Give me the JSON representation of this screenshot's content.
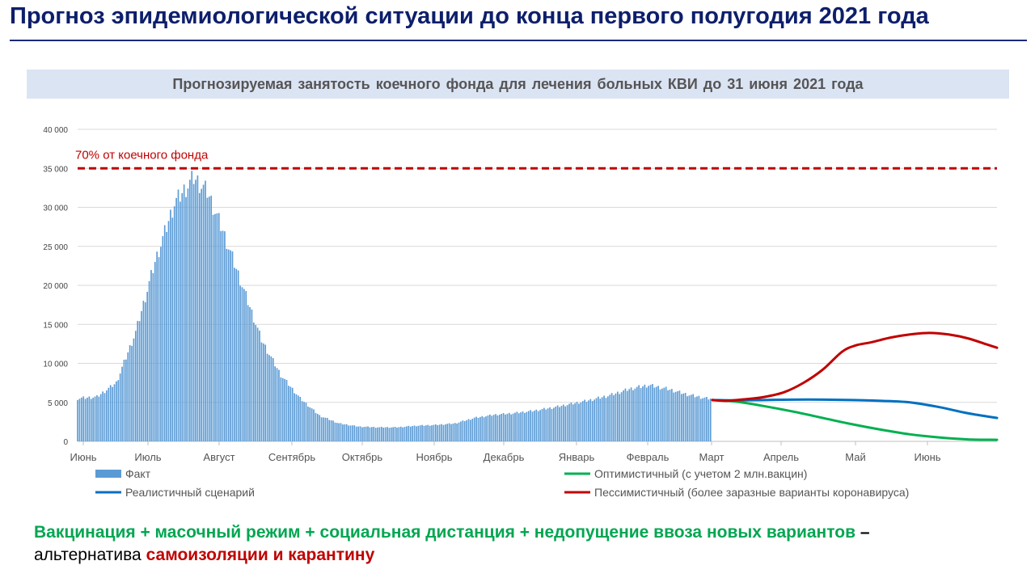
{
  "slide": {
    "title": "Прогноз эпидемиологической ситуации до конца первого полугодия 2021 года"
  },
  "chart_data": {
    "type": "bar",
    "title": "Прогнозируемая занятость коечного фонда для лечения больных КВИ до 31 июня 2021 года",
    "xlabel": "",
    "ylabel": "",
    "ylim": [
      0,
      40000
    ],
    "yticks": [
      0,
      5000,
      10000,
      15000,
      20000,
      25000,
      30000,
      35000,
      40000
    ],
    "ytick_labels": [
      "0",
      "5 000",
      "10 000",
      "15 000",
      "20 000",
      "25 000",
      "30 000",
      "35 000",
      "40 000"
    ],
    "grid": true,
    "legend_position": "bottom",
    "month_labels": [
      "Июнь",
      "Июль",
      "Август",
      "Сентябрь",
      "Октябрь",
      "Ноябрь",
      "Декабрь",
      "Январь",
      "Февраль",
      "Март",
      "Апрель",
      "Май",
      "Июнь"
    ],
    "reference_line": {
      "value": 35000,
      "label": "70% от коечного фонда",
      "color": "#c00000",
      "style": "dashed"
    },
    "fact": {
      "name": "Факт",
      "color": "#5b9bd5",
      "knots": [
        [
          0,
          5500
        ],
        [
          10,
          5700
        ],
        [
          20,
          7500
        ],
        [
          30,
          14000
        ],
        [
          40,
          23000
        ],
        [
          50,
          30500
        ],
        [
          60,
          33800
        ],
        [
          67,
          32000
        ],
        [
          75,
          27000
        ],
        [
          85,
          20000
        ],
        [
          95,
          13000
        ],
        [
          105,
          8500
        ],
        [
          115,
          5500
        ],
        [
          125,
          3300
        ],
        [
          135,
          2300
        ],
        [
          145,
          1900
        ],
        [
          155,
          1800
        ],
        [
          165,
          1800
        ],
        [
          175,
          2000
        ],
        [
          185,
          2100
        ],
        [
          195,
          2300
        ],
        [
          205,
          3000
        ],
        [
          215,
          3400
        ],
        [
          225,
          3600
        ],
        [
          235,
          3900
        ],
        [
          245,
          4300
        ],
        [
          255,
          4800
        ],
        [
          265,
          5300
        ],
        [
          275,
          5900
        ],
        [
          285,
          6700
        ],
        [
          295,
          7200
        ],
        [
          305,
          6700
        ],
        [
          315,
          6000
        ],
        [
          325,
          5500
        ]
      ],
      "days": 328
    },
    "series": [
      {
        "name": "Оптимистичный  (с учетом 2 млн.вакцин)",
        "color": "#00b050",
        "points": [
          [
            328,
            5300
          ],
          [
            340,
            5100
          ],
          [
            355,
            4500
          ],
          [
            370,
            3800
          ],
          [
            385,
            3000
          ],
          [
            400,
            2200
          ],
          [
            415,
            1500
          ],
          [
            430,
            900
          ],
          [
            445,
            500
          ],
          [
            460,
            250
          ],
          [
            475,
            200
          ]
        ]
      },
      {
        "name": "Реалистичный сценарий",
        "color": "#0070c0",
        "points": [
          [
            328,
            5300
          ],
          [
            340,
            5250
          ],
          [
            355,
            5300
          ],
          [
            370,
            5350
          ],
          [
            385,
            5350
          ],
          [
            400,
            5300
          ],
          [
            415,
            5200
          ],
          [
            430,
            5000
          ],
          [
            445,
            4400
          ],
          [
            460,
            3600
          ],
          [
            475,
            3000
          ]
        ]
      },
      {
        "name": "Пессимистичный  (более заразные  варианты  коронавируса)",
        "color": "#c00000",
        "points": [
          [
            328,
            5300
          ],
          [
            335,
            5200
          ],
          [
            345,
            5400
          ],
          [
            355,
            5700
          ],
          [
            365,
            6300
          ],
          [
            375,
            7500
          ],
          [
            385,
            9200
          ],
          [
            395,
            11500
          ],
          [
            402,
            12300
          ],
          [
            410,
            12700
          ],
          [
            420,
            13300
          ],
          [
            430,
            13700
          ],
          [
            440,
            13900
          ],
          [
            450,
            13700
          ],
          [
            460,
            13200
          ],
          [
            470,
            12400
          ],
          [
            475,
            12000
          ]
        ]
      }
    ]
  },
  "footer": {
    "green_text": "Вакцинация + масочный режим + социальная дистанция + недопущение ввоза новых вариантов",
    "dash": " –",
    "plain_text": "альтернатива ",
    "red_text": "самоизоляции и карантину"
  }
}
